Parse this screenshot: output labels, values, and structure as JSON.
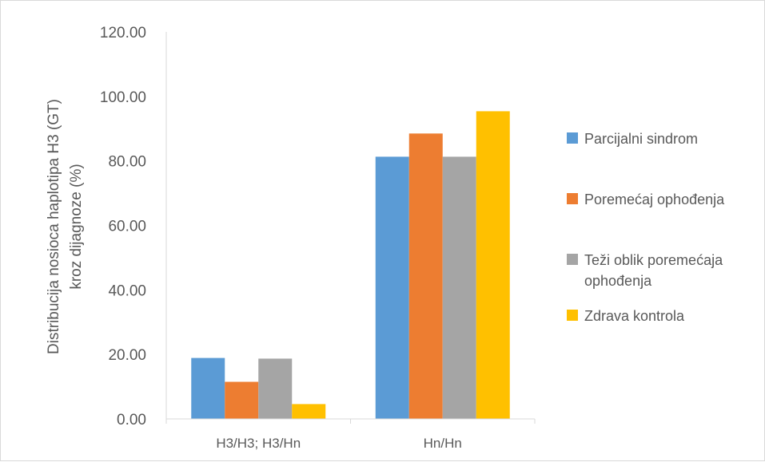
{
  "chart_data": {
    "type": "bar",
    "categories": [
      "H3/H3; H3/Hn",
      "Hn/Hn"
    ],
    "series": [
      {
        "name": "Parcijalni sindrom",
        "values": [
          18.9,
          81.3
        ],
        "color": "#5b9bd5"
      },
      {
        "name": "Poremećaj ophođenja",
        "values": [
          11.5,
          88.5
        ],
        "color": "#ed7d31"
      },
      {
        "name": "Teži oblik poremećaja ophođenja",
        "values": [
          18.7,
          81.3
        ],
        "color": "#a5a5a5"
      },
      {
        "name": "Zdrava kontrola",
        "values": [
          4.6,
          95.4
        ],
        "color": "#ffc000"
      }
    ],
    "ylabel_lines": [
      "Distribucija nosioca haplotipa H3 (GT)",
      "kroz dijagnoze (%)"
    ],
    "ylim": [
      0,
      120
    ],
    "yticks": [
      0,
      20,
      40,
      60,
      80,
      100,
      120
    ],
    "ytick_labels": [
      "0.00",
      "20.00",
      "40.00",
      "60.00",
      "80.00",
      "100.00",
      "120.00"
    ],
    "grid": false,
    "legend_position": "right"
  }
}
